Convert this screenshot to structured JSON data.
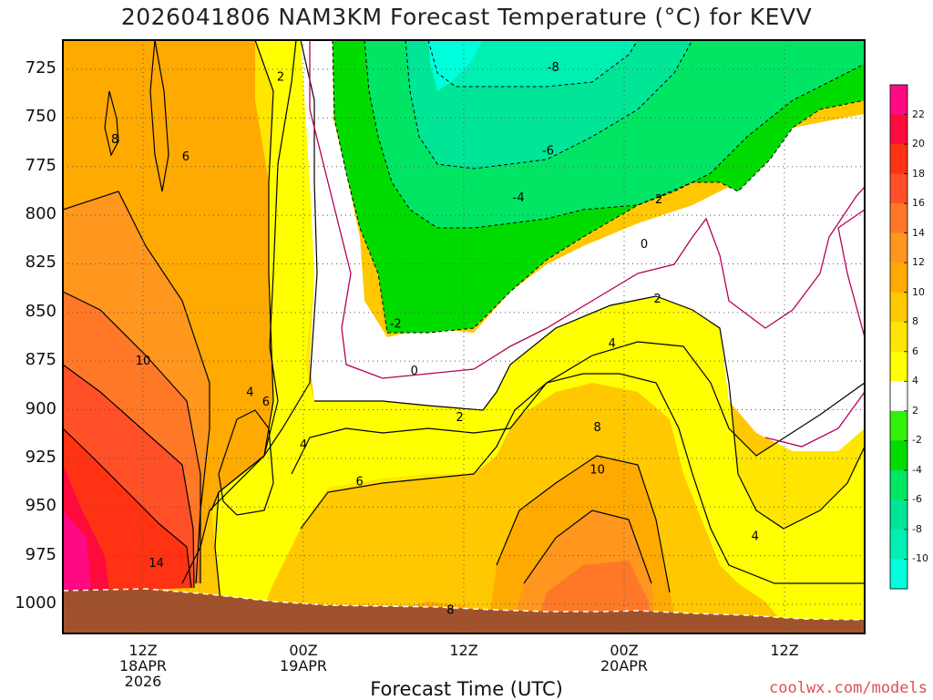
{
  "title": "2026041806 NAM3KM Forecast Temperature (°C) for KEVV",
  "xlabel": "Forecast Time (UTC)",
  "credit": "coolwx.com/models",
  "chart_data": {
    "type": "contour",
    "variable": "Temperature (°C)",
    "y_axis": {
      "label": "",
      "ticks": [
        725,
        750,
        775,
        800,
        825,
        850,
        875,
        900,
        925,
        950,
        975,
        1000
      ],
      "range": [
        1015,
        710
      ],
      "inverted": true
    },
    "x_axis": {
      "label": "Forecast Time (UTC)",
      "range_hours": [
        6,
        66
      ],
      "ticks": [
        {
          "hour": 12,
          "lines": [
            "12Z",
            "18APR",
            "2026"
          ]
        },
        {
          "hour": 24,
          "lines": [
            "00Z",
            "19APR"
          ]
        },
        {
          "hour": 36,
          "lines": [
            "12Z"
          ]
        },
        {
          "hour": 48,
          "lines": [
            "00Z",
            "20APR"
          ]
        },
        {
          "hour": 60,
          "lines": [
            "12Z"
          ]
        }
      ]
    },
    "grid": true,
    "colorbar": {
      "levels": [
        -10,
        -8,
        -6,
        -4,
        -2,
        2,
        4,
        6,
        8,
        10,
        12,
        14,
        16,
        18,
        20,
        22
      ],
      "colors": [
        "#00ffdc",
        "#00f0b4",
        "#00e696",
        "#00e664",
        "#00dc00",
        "#32f00a",
        "#ffffff",
        "#ffff00",
        "#ffe600",
        "#ffc800",
        "#ffaa00",
        "#ff961e",
        "#ff7828",
        "#ff5028",
        "#ff3214",
        "#ff0a3c",
        "#ff0a82"
      ]
    },
    "contour_labels": [
      {
        "text": "2",
        "hour": 22.3,
        "p": 729
      },
      {
        "text": "8",
        "hour": 9.9,
        "p": 761
      },
      {
        "text": "6",
        "hour": 15.2,
        "p": 770
      },
      {
        "text": "-8",
        "hour": 42.7,
        "p": 724
      },
      {
        "text": "-6",
        "hour": 42.3,
        "p": 767
      },
      {
        "text": "-4",
        "hour": 40.1,
        "p": 791
      },
      {
        "text": "2",
        "hour": 50.6,
        "p": 792
      },
      {
        "text": "0",
        "hour": 49.5,
        "p": 815
      },
      {
        "text": "2",
        "hour": 50.5,
        "p": 843
      },
      {
        "text": "-2",
        "hour": 30.9,
        "p": 856
      },
      {
        "text": "4",
        "hour": 47.1,
        "p": 866
      },
      {
        "text": "0",
        "hour": 32.3,
        "p": 880
      },
      {
        "text": "10",
        "hour": 12.0,
        "p": 875
      },
      {
        "text": "4",
        "hour": 20.0,
        "p": 891
      },
      {
        "text": "6",
        "hour": 21.2,
        "p": 896
      },
      {
        "text": "2",
        "hour": 35.7,
        "p": 904
      },
      {
        "text": "8",
        "hour": 46.0,
        "p": 909
      },
      {
        "text": "4",
        "hour": 24.0,
        "p": 918
      },
      {
        "text": "10",
        "hour": 46.0,
        "p": 931
      },
      {
        "text": "6",
        "hour": 28.2,
        "p": 937
      },
      {
        "text": "4",
        "hour": 57.8,
        "p": 965
      },
      {
        "text": "14",
        "hour": 13.0,
        "p": 979
      },
      {
        "text": "8",
        "hour": 35.0,
        "p": 1003
      }
    ],
    "ground": {
      "surface_pressure_left": 994,
      "surface_pressure_right": 1006,
      "color": "#a0522d"
    }
  }
}
